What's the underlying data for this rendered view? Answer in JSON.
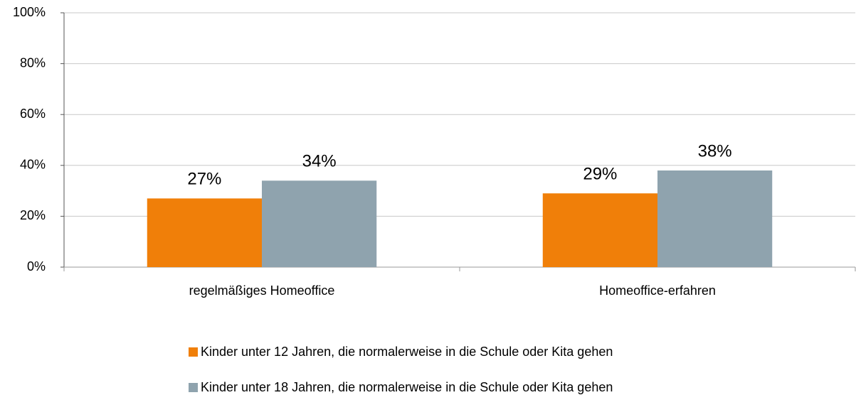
{
  "chart_data": {
    "type": "bar",
    "categories": [
      "regelmäßiges Homeoffice",
      "Homeoffice-erfahren"
    ],
    "series": [
      {
        "name": "Kinder unter 12 Jahren, die normalerweise in die Schule oder Kita gehen",
        "color": "#f07f09",
        "values": [
          27,
          29
        ],
        "value_labels": [
          "27%",
          "29%"
        ]
      },
      {
        "name": "Kinder unter 18 Jahren, die normalerweise in die Schule oder Kita gehen",
        "color": "#8fa3ae",
        "values": [
          34,
          38
        ],
        "value_labels": [
          "34%",
          "38%"
        ]
      }
    ],
    "ylim": [
      0,
      100
    ],
    "yticks": [
      {
        "value": 0,
        "label": "0%"
      },
      {
        "value": 20,
        "label": "20%"
      },
      {
        "value": 40,
        "label": "40%"
      },
      {
        "value": 60,
        "label": "60%"
      },
      {
        "value": 80,
        "label": "80%"
      },
      {
        "value": 100,
        "label": "100%"
      }
    ],
    "grid": true,
    "legend": "bottom"
  }
}
